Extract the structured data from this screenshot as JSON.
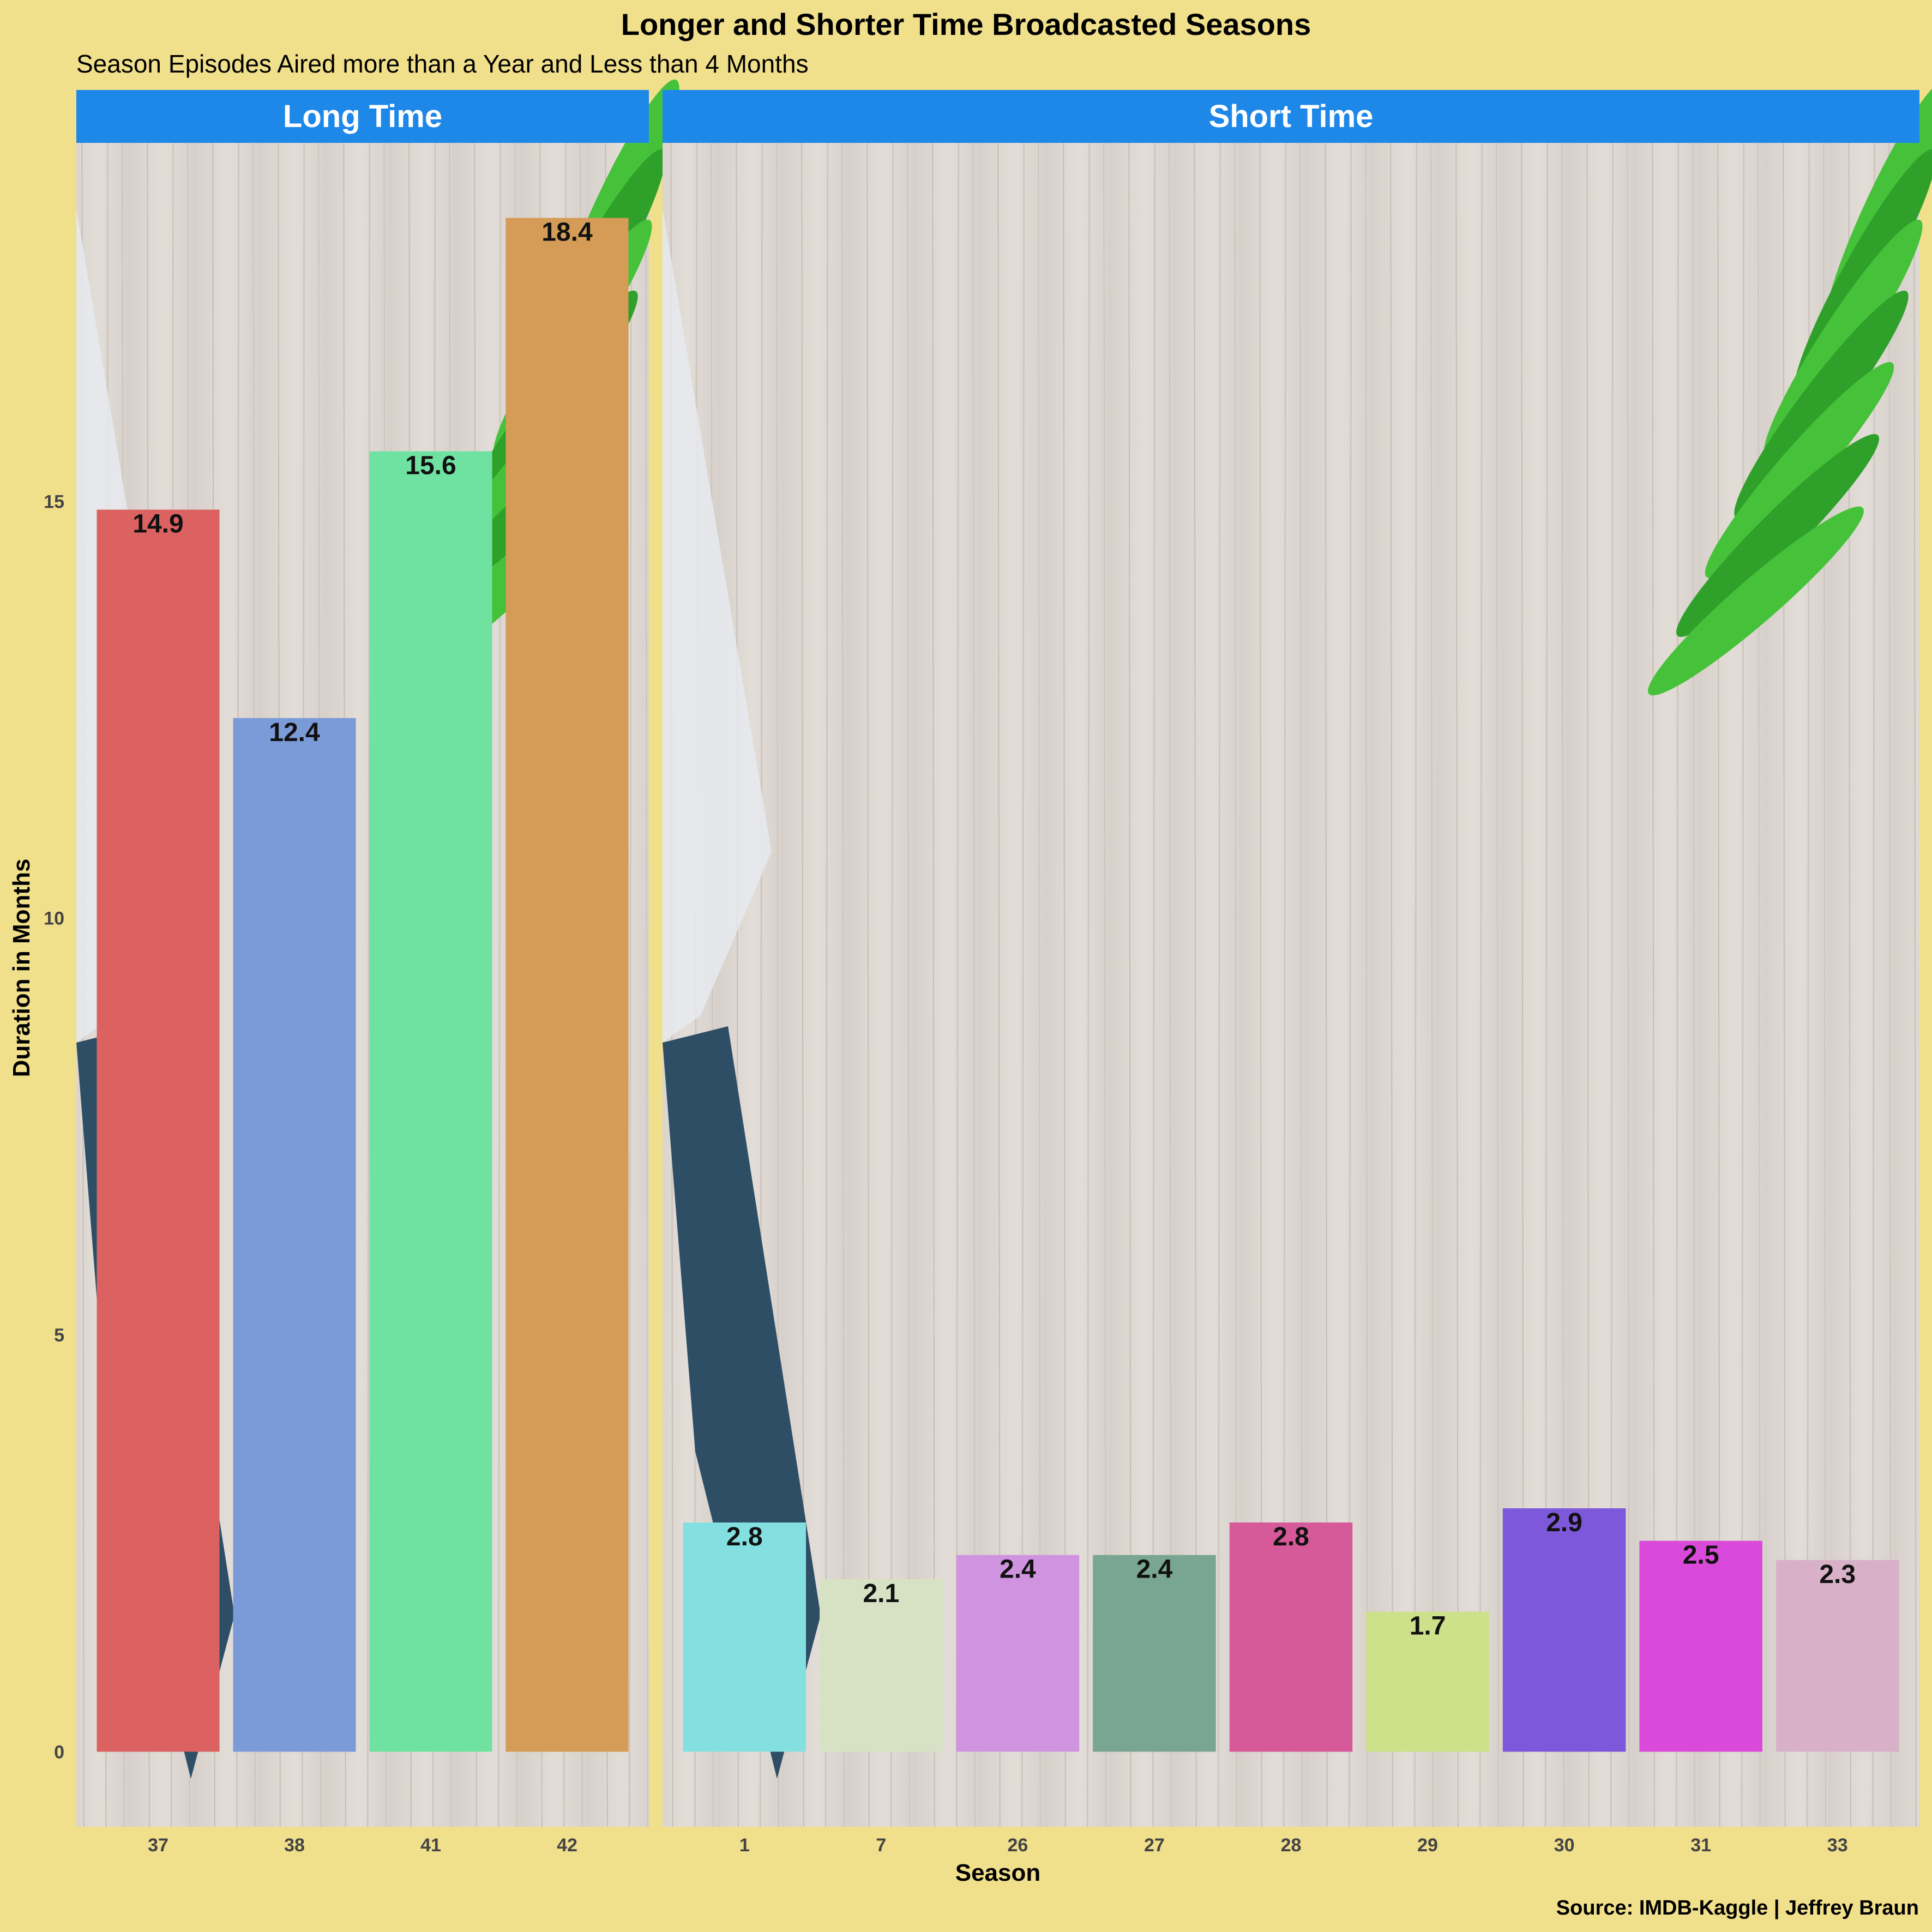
{
  "chart_data": {
    "type": "bar",
    "title": "Longer and Shorter Time Broadcasted Seasons",
    "subtitle": "Season Episodes Aired more than a Year and Less than 4 Months",
    "xlabel": "Season",
    "ylabel": "Duration in Months",
    "caption": "Source: IMDB-Kaggle | Jeffrey Braun",
    "ylim": [
      -0.9,
      19.3
    ],
    "yticks": [
      0,
      5,
      10,
      15
    ],
    "grid": false,
    "legend": "none",
    "background_image": "wooden cutting board with kitchen knife and green leaves",
    "panel_strip_color": "#1e88e8",
    "page_background": "#f0df8b",
    "panels": [
      {
        "name": "Long Time",
        "categories": [
          "37",
          "38",
          "41",
          "42"
        ],
        "values": [
          14.9,
          12.4,
          15.6,
          18.4
        ],
        "labels": [
          "14.9",
          "12.4",
          "15.6",
          "18.4"
        ],
        "colors": [
          "#dc6262",
          "#7b9bd8",
          "#6fe2a2",
          "#d49c56"
        ]
      },
      {
        "name": "Short Time",
        "categories": [
          "1",
          "7",
          "26",
          "27",
          "28",
          "29",
          "30",
          "31",
          "33"
        ],
        "values": [
          2.75,
          2.07,
          2.36,
          2.36,
          2.75,
          1.68,
          2.92,
          2.53,
          2.3
        ],
        "labels": [
          "2.8",
          "2.1",
          "2.4",
          "2.4",
          "2.8",
          "1.7",
          "2.9",
          "2.5",
          "2.3"
        ],
        "colors": [
          "#84e0e0",
          "#d7e2c5",
          "#cf93e0",
          "#78a692",
          "#d65a9a",
          "#cde08a",
          "#7e58da",
          "#da4ada",
          "#d8b1c8"
        ]
      }
    ]
  }
}
